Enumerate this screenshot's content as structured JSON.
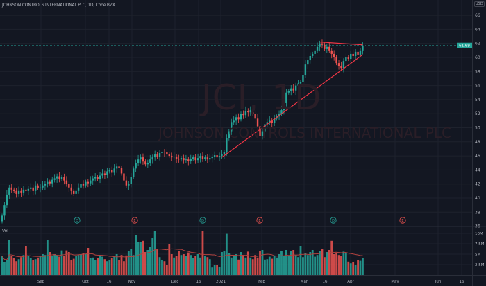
{
  "header": {
    "title": "JOHNSON CONTROLS INTERNATIONAL PLC, 1D, Cboe BZX",
    "currency": "USD"
  },
  "watermark": {
    "symbol": "JCI, 1D",
    "name": "JOHNSON CONTROLS INTERNATIONAL PLC"
  },
  "volume_pane": {
    "label": "Vol",
    "ticks": [
      "10M",
      "7.5M",
      "5M",
      "2.5M"
    ],
    "tick_values": [
      10,
      7.5,
      5,
      2.5
    ]
  },
  "price_axis": {
    "ticks": [
      66,
      64,
      62,
      60,
      58,
      56,
      54,
      52,
      50,
      48,
      46,
      44,
      42,
      40,
      38,
      36
    ],
    "last_price": "61.69"
  },
  "time_axis": {
    "labels": [
      "Sep",
      "Oct",
      "16",
      "Nov",
      "Dec",
      "16",
      "2021",
      "Feb",
      "Mar",
      "16",
      "Apr",
      "May",
      "Jun",
      "16"
    ]
  },
  "events": [
    {
      "type": "D",
      "color": "#26a69a"
    },
    {
      "type": "E",
      "color": "#ef5350"
    },
    {
      "type": "D",
      "color": "#26a69a"
    },
    {
      "type": "E",
      "color": "#ef5350"
    },
    {
      "type": "D",
      "color": "#26a69a"
    },
    {
      "type": "E",
      "color": "#ef5350"
    }
  ],
  "colors": {
    "up": "#26a69a",
    "down": "#ef5350",
    "trendline": "#f23645",
    "volume_ma": "#b0413e",
    "background": "#131722"
  },
  "drawings": [
    {
      "type": "trendline",
      "from": {
        "bar": 92,
        "price": 45.8
      },
      "to": {
        "bar": 151,
        "price": 60.4
      }
    },
    {
      "type": "trendline",
      "from": {
        "bar": 133,
        "price": 62.2
      },
      "to": {
        "bar": 151,
        "price": 61.8
      }
    }
  ],
  "chart_data": {
    "type": "candlestick",
    "interval": "1D",
    "close": [
      37.5,
      39,
      40.5,
      41.5,
      41.2,
      41,
      40.6,
      41,
      40.8,
      41.2,
      41,
      41.3,
      41.5,
      41,
      41.8,
      41.4,
      41.5,
      41.8,
      42,
      42.3,
      42.1,
      42.6,
      42.8,
      43.1,
      42.7,
      43,
      42.5,
      42,
      41.5,
      41,
      40.6,
      41,
      41.5,
      42,
      41.8,
      42.3,
      42.1,
      42.5,
      42.8,
      43,
      42.7,
      43.2,
      43.5,
      43.3,
      43.8,
      44,
      43.6,
      44.2,
      44.5,
      44.3,
      43.5,
      42.5,
      41.8,
      42,
      43,
      44.2,
      45,
      45.5,
      45.8,
      45.2,
      44.8,
      45,
      45.5,
      45.8,
      46.2,
      45.9,
      46.4,
      46.6,
      46.5,
      46.2,
      46,
      45.8,
      45.9,
      45.6,
      45.5,
      45.7,
      45.4,
      45.5,
      45.3,
      45.6,
      45.8,
      45.4,
      45.7,
      46,
      45.6,
      45.8,
      45.5,
      45.7,
      45.9,
      46.1,
      45.8,
      46,
      46.2,
      46.5,
      48.5,
      49.5,
      50.8,
      51,
      51.5,
      51.2,
      52,
      51.8,
      52.4,
      52.2,
      52.5,
      52,
      51.3,
      50.2,
      48.8,
      49.5,
      50.5,
      50.8,
      51,
      50.7,
      51.3,
      51.6,
      52,
      52.5,
      53.5,
      55,
      55.2,
      55.6,
      55.3,
      56,
      56.3,
      56.5,
      57.5,
      59,
      59.6,
      60.2,
      60.5,
      61,
      61.5,
      62,
      61.8,
      61.2,
      61.5,
      61,
      60.5,
      60,
      59.2,
      58.8,
      58.5,
      59.5,
      60,
      59.8,
      60.5,
      60.2,
      60.8,
      60.4,
      61,
      61.7
    ],
    "volume_millions": [
      4.5,
      3,
      3.5,
      8.5,
      4.6,
      4,
      3.3,
      3.8,
      4.3,
      4.8,
      7,
      4.5,
      4,
      3.5,
      3.8,
      4.2,
      4.5,
      5,
      4.8,
      8.5,
      5.5,
      4.5,
      5,
      4.8,
      4.4,
      5.9,
      4.6,
      5.9,
      5.5,
      3.6,
      3.9,
      4.5,
      4.8,
      5,
      5.2,
      5,
      6.5,
      4,
      4.2,
      3.5,
      4,
      4.8,
      4.4,
      3.8,
      3.3,
      3.5,
      4,
      4.5,
      5,
      3.5,
      4.8,
      3.3,
      4.7,
      5.8,
      6.2,
      4.8,
      9.5,
      8,
      8,
      8.2,
      5.5,
      6,
      6.8,
      9,
      10.5,
      6.3,
      4.3,
      3.6,
      3.3,
      2.4,
      7.5,
      5,
      4.2,
      4.5,
      5.7,
      4.8,
      5,
      4.6,
      5.4,
      4.8,
      4,
      4.6,
      5,
      4.2,
      10.5,
      4.5,
      4.3,
      3.8,
      1.8,
      2.5,
      2.4,
      2,
      5.5,
      5.7,
      9.9,
      5.3,
      4.2,
      4.5,
      5,
      3.7,
      5.5,
      4.8,
      4.2,
      5.6,
      4.2,
      3.8,
      4.8,
      4.2,
      5.7,
      6,
      3.7,
      3.8,
      4.4,
      3.9,
      4.7,
      4.2,
      5,
      5.7,
      4.6,
      6,
      4.7,
      5.8,
      6,
      4.8,
      4.3,
      7,
      4.3,
      5.2,
      4.8,
      5.5,
      6,
      4.4,
      4.8,
      5.7,
      6.2,
      4.3,
      5.5,
      6,
      8.2,
      5,
      5.2,
      4.8,
      4.6,
      5.6,
      5.2,
      3.2,
      2.8,
      3,
      2.4,
      3.5,
      3.4,
      4
    ],
    "volume_ma_period": 20,
    "ylim": [
      35,
      67
    ]
  }
}
